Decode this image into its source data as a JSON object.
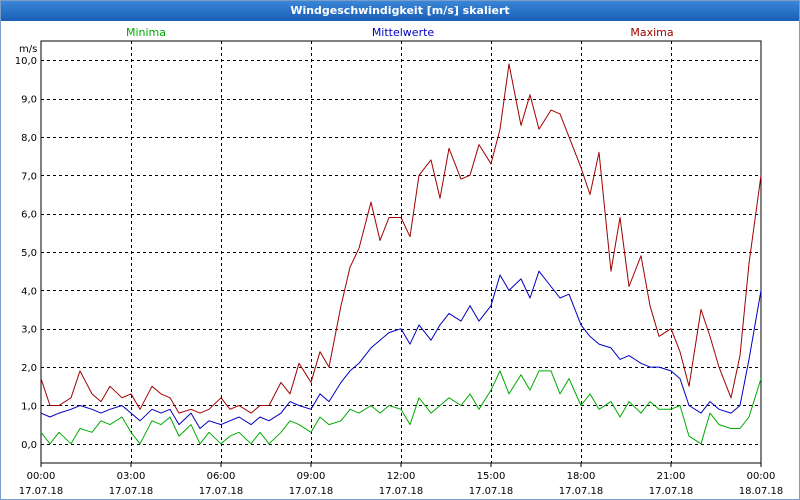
{
  "window": {
    "title": "Windgeschwindigkeit [m/s] skaliert"
  },
  "chart_data": {
    "type": "line",
    "title": "Windgeschwindigkeit [m/s] skaliert",
    "ylabel": "m/s",
    "ylim": [
      -0.5,
      10.5
    ],
    "xlim": [
      0,
      24
    ],
    "grid": true,
    "y_ticks": [
      {
        "v": 0,
        "label": "0,0"
      },
      {
        "v": 1,
        "label": "1,0"
      },
      {
        "v": 2,
        "label": "2,0"
      },
      {
        "v": 3,
        "label": "3,0"
      },
      {
        "v": 4,
        "label": "4,0"
      },
      {
        "v": 5,
        "label": "5,0"
      },
      {
        "v": 6,
        "label": "6,0"
      },
      {
        "v": 7,
        "label": "7,0"
      },
      {
        "v": 8,
        "label": "8,0"
      },
      {
        "v": 9,
        "label": "9,0"
      },
      {
        "v": 10,
        "label": "10,0"
      }
    ],
    "x_ticks": [
      {
        "h": 0,
        "time": "00:00",
        "date": "17.07.18"
      },
      {
        "h": 3,
        "time": "03:00",
        "date": "17.07.18"
      },
      {
        "h": 6,
        "time": "06:00",
        "date": "17.07.18"
      },
      {
        "h": 9,
        "time": "09:00",
        "date": "17.07.18"
      },
      {
        "h": 12,
        "time": "12:00",
        "date": "17.07.18"
      },
      {
        "h": 15,
        "time": "15:00",
        "date": "17.07.18"
      },
      {
        "h": 18,
        "time": "18:00",
        "date": "17.07.18"
      },
      {
        "h": 21,
        "time": "21:00",
        "date": "17.07.18"
      },
      {
        "h": 24,
        "time": "00:00",
        "date": "18.07.18"
      }
    ],
    "series": [
      {
        "name": "Minima",
        "color": "#00aa00",
        "legend_pos": "left",
        "points": [
          [
            0.0,
            0.3
          ],
          [
            0.3,
            0.0
          ],
          [
            0.6,
            0.3
          ],
          [
            1.0,
            0.0
          ],
          [
            1.3,
            0.4
          ],
          [
            1.7,
            0.3
          ],
          [
            2.0,
            0.6
          ],
          [
            2.3,
            0.5
          ],
          [
            2.7,
            0.7
          ],
          [
            3.0,
            0.3
          ],
          [
            3.3,
            0.0
          ],
          [
            3.7,
            0.6
          ],
          [
            4.0,
            0.5
          ],
          [
            4.3,
            0.7
          ],
          [
            4.6,
            0.2
          ],
          [
            5.0,
            0.5
          ],
          [
            5.3,
            0.0
          ],
          [
            5.6,
            0.3
          ],
          [
            6.0,
            0.0
          ],
          [
            6.3,
            0.2
          ],
          [
            6.6,
            0.3
          ],
          [
            7.0,
            0.0
          ],
          [
            7.3,
            0.3
          ],
          [
            7.6,
            0.0
          ],
          [
            8.0,
            0.3
          ],
          [
            8.3,
            0.6
          ],
          [
            8.6,
            0.5
          ],
          [
            9.0,
            0.3
          ],
          [
            9.3,
            0.7
          ],
          [
            9.6,
            0.5
          ],
          [
            10.0,
            0.6
          ],
          [
            10.3,
            0.9
          ],
          [
            10.6,
            0.8
          ],
          [
            11.0,
            1.0
          ],
          [
            11.3,
            0.8
          ],
          [
            11.6,
            1.0
          ],
          [
            12.0,
            0.9
          ],
          [
            12.3,
            0.5
          ],
          [
            12.6,
            1.2
          ],
          [
            13.0,
            0.8
          ],
          [
            13.3,
            1.0
          ],
          [
            13.6,
            1.2
          ],
          [
            14.0,
            1.0
          ],
          [
            14.3,
            1.3
          ],
          [
            14.6,
            0.9
          ],
          [
            15.0,
            1.4
          ],
          [
            15.3,
            1.9
          ],
          [
            15.6,
            1.3
          ],
          [
            16.0,
            1.8
          ],
          [
            16.3,
            1.4
          ],
          [
            16.6,
            1.9
          ],
          [
            17.0,
            1.9
          ],
          [
            17.3,
            1.3
          ],
          [
            17.6,
            1.7
          ],
          [
            18.0,
            1.0
          ],
          [
            18.3,
            1.3
          ],
          [
            18.6,
            0.9
          ],
          [
            19.0,
            1.1
          ],
          [
            19.3,
            0.7
          ],
          [
            19.6,
            1.1
          ],
          [
            20.0,
            0.8
          ],
          [
            20.3,
            1.1
          ],
          [
            20.6,
            0.9
          ],
          [
            21.0,
            0.9
          ],
          [
            21.3,
            1.0
          ],
          [
            21.6,
            0.2
          ],
          [
            22.0,
            0.0
          ],
          [
            22.3,
            0.8
          ],
          [
            22.6,
            0.5
          ],
          [
            23.0,
            0.4
          ],
          [
            23.3,
            0.4
          ],
          [
            23.6,
            0.7
          ],
          [
            24.0,
            1.7
          ]
        ]
      },
      {
        "name": "Mittelwerte",
        "color": "#0000c0",
        "legend_pos": "center",
        "points": [
          [
            0.0,
            0.8
          ],
          [
            0.3,
            0.7
          ],
          [
            0.6,
            0.8
          ],
          [
            1.0,
            0.9
          ],
          [
            1.3,
            1.0
          ],
          [
            1.7,
            0.9
          ],
          [
            2.0,
            0.8
          ],
          [
            2.3,
            0.9
          ],
          [
            2.7,
            1.0
          ],
          [
            3.0,
            0.8
          ],
          [
            3.3,
            0.6
          ],
          [
            3.7,
            0.9
          ],
          [
            4.0,
            0.8
          ],
          [
            4.3,
            0.9
          ],
          [
            4.6,
            0.5
          ],
          [
            5.0,
            0.8
          ],
          [
            5.3,
            0.4
          ],
          [
            5.6,
            0.6
          ],
          [
            6.0,
            0.5
          ],
          [
            6.3,
            0.6
          ],
          [
            6.6,
            0.7
          ],
          [
            7.0,
            0.5
          ],
          [
            7.3,
            0.7
          ],
          [
            7.6,
            0.6
          ],
          [
            8.0,
            0.8
          ],
          [
            8.3,
            1.1
          ],
          [
            8.6,
            1.0
          ],
          [
            9.0,
            0.9
          ],
          [
            9.3,
            1.3
          ],
          [
            9.6,
            1.1
          ],
          [
            10.0,
            1.6
          ],
          [
            10.3,
            1.9
          ],
          [
            10.6,
            2.1
          ],
          [
            11.0,
            2.5
          ],
          [
            11.3,
            2.7
          ],
          [
            11.6,
            2.9
          ],
          [
            12.0,
            3.0
          ],
          [
            12.3,
            2.6
          ],
          [
            12.6,
            3.1
          ],
          [
            13.0,
            2.7
          ],
          [
            13.3,
            3.1
          ],
          [
            13.6,
            3.4
          ],
          [
            14.0,
            3.2
          ],
          [
            14.3,
            3.6
          ],
          [
            14.6,
            3.2
          ],
          [
            15.0,
            3.6
          ],
          [
            15.3,
            4.4
          ],
          [
            15.6,
            4.0
          ],
          [
            16.0,
            4.3
          ],
          [
            16.3,
            3.8
          ],
          [
            16.6,
            4.5
          ],
          [
            17.0,
            4.1
          ],
          [
            17.3,
            3.8
          ],
          [
            17.6,
            3.9
          ],
          [
            18.0,
            3.1
          ],
          [
            18.3,
            2.8
          ],
          [
            18.6,
            2.6
          ],
          [
            19.0,
            2.5
          ],
          [
            19.3,
            2.2
          ],
          [
            19.6,
            2.3
          ],
          [
            20.0,
            2.1
          ],
          [
            20.3,
            2.0
          ],
          [
            20.6,
            2.0
          ],
          [
            21.0,
            1.9
          ],
          [
            21.3,
            1.7
          ],
          [
            21.6,
            1.0
          ],
          [
            22.0,
            0.8
          ],
          [
            22.3,
            1.1
          ],
          [
            22.6,
            0.9
          ],
          [
            23.0,
            0.8
          ],
          [
            23.3,
            1.0
          ],
          [
            23.6,
            2.2
          ],
          [
            24.0,
            4.0
          ]
        ]
      },
      {
        "name": "Maxima",
        "color": "#a00000",
        "legend_pos": "right",
        "points": [
          [
            0.0,
            1.7
          ],
          [
            0.3,
            1.0
          ],
          [
            0.6,
            1.0
          ],
          [
            1.0,
            1.2
          ],
          [
            1.3,
            1.9
          ],
          [
            1.7,
            1.3
          ],
          [
            2.0,
            1.1
          ],
          [
            2.3,
            1.5
          ],
          [
            2.7,
            1.2
          ],
          [
            3.0,
            1.3
          ],
          [
            3.3,
            0.9
          ],
          [
            3.7,
            1.5
          ],
          [
            4.0,
            1.3
          ],
          [
            4.3,
            1.2
          ],
          [
            4.6,
            0.8
          ],
          [
            5.0,
            0.9
          ],
          [
            5.3,
            0.8
          ],
          [
            5.6,
            0.9
          ],
          [
            6.0,
            1.2
          ],
          [
            6.3,
            0.9
          ],
          [
            6.6,
            1.0
          ],
          [
            7.0,
            0.8
          ],
          [
            7.3,
            1.0
          ],
          [
            7.6,
            1.0
          ],
          [
            8.0,
            1.6
          ],
          [
            8.3,
            1.3
          ],
          [
            8.6,
            2.1
          ],
          [
            9.0,
            1.6
          ],
          [
            9.3,
            2.4
          ],
          [
            9.6,
            2.0
          ],
          [
            10.0,
            3.6
          ],
          [
            10.3,
            4.6
          ],
          [
            10.6,
            5.1
          ],
          [
            11.0,
            6.3
          ],
          [
            11.3,
            5.3
          ],
          [
            11.6,
            5.9
          ],
          [
            12.0,
            5.9
          ],
          [
            12.3,
            5.4
          ],
          [
            12.6,
            7.0
          ],
          [
            13.0,
            7.4
          ],
          [
            13.3,
            6.4
          ],
          [
            13.6,
            7.7
          ],
          [
            14.0,
            6.9
          ],
          [
            14.3,
            7.0
          ],
          [
            14.6,
            7.8
          ],
          [
            15.0,
            7.3
          ],
          [
            15.3,
            8.2
          ],
          [
            15.6,
            9.9
          ],
          [
            16.0,
            8.3
          ],
          [
            16.3,
            9.1
          ],
          [
            16.6,
            8.2
          ],
          [
            17.0,
            8.7
          ],
          [
            17.3,
            8.6
          ],
          [
            17.6,
            8.0
          ],
          [
            18.0,
            7.2
          ],
          [
            18.3,
            6.5
          ],
          [
            18.6,
            7.6
          ],
          [
            19.0,
            4.5
          ],
          [
            19.3,
            5.9
          ],
          [
            19.6,
            4.1
          ],
          [
            20.0,
            4.9
          ],
          [
            20.3,
            3.6
          ],
          [
            20.6,
            2.8
          ],
          [
            21.0,
            3.0
          ],
          [
            21.3,
            2.4
          ],
          [
            21.6,
            1.5
          ],
          [
            22.0,
            3.5
          ],
          [
            22.3,
            2.8
          ],
          [
            22.6,
            2.0
          ],
          [
            23.0,
            1.2
          ],
          [
            23.3,
            2.3
          ],
          [
            23.6,
            4.7
          ],
          [
            24.0,
            7.0
          ]
        ]
      }
    ]
  }
}
